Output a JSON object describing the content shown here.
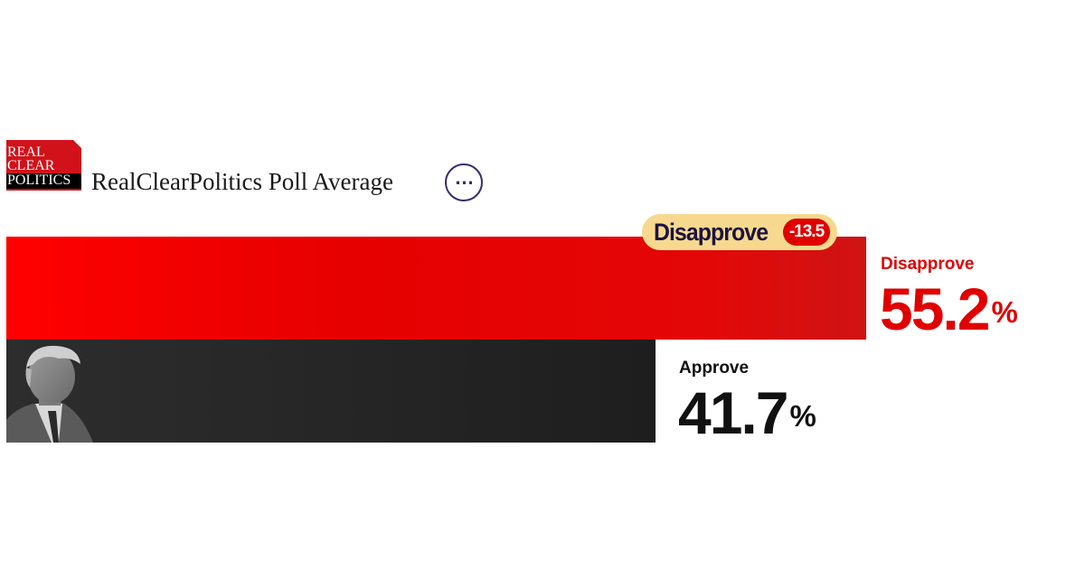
{
  "header": {
    "logo_lines": [
      "REAL",
      "CLEAR",
      "POLITICS"
    ],
    "title": "RealClearPolitics Poll Average",
    "more_icon": "ellipsis-icon"
  },
  "leader_badge": {
    "label": "Disapprove",
    "spread": "-13.5"
  },
  "colors": {
    "disapprove": "#e00000",
    "approve": "#262626",
    "badge_bg": "#f6d98f"
  },
  "chart_data": {
    "type": "bar",
    "orientation": "horizontal",
    "categories": [
      "Disapprove",
      "Approve"
    ],
    "values": [
      55.2,
      41.7
    ],
    "value_labels": [
      "55.2",
      "41.7"
    ],
    "unit": "%",
    "xlim": [
      0,
      56
    ]
  }
}
